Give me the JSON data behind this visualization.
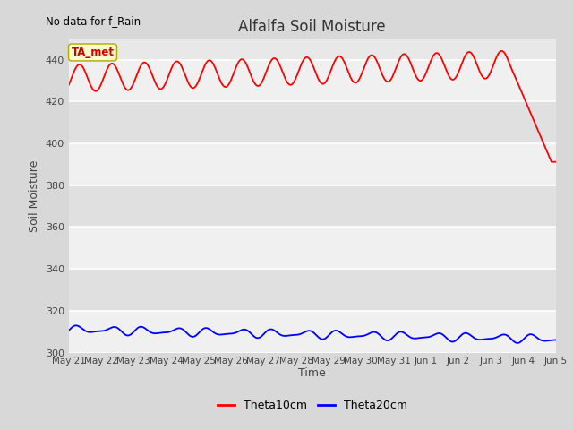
{
  "title": "Alfalfa Soil Moisture",
  "subtitle": "No data for f_Rain",
  "ylabel": "Soil Moisture",
  "xlabel": "Time",
  "ylim": [
    300,
    450
  ],
  "yticks": [
    300,
    320,
    340,
    360,
    380,
    400,
    420,
    440
  ],
  "fig_bg_color": "#d8d8d8",
  "plot_bg_color": "#e8e8e8",
  "line1_color": "#ff0000",
  "line2_color": "#0000ff",
  "legend_labels": [
    "Theta10cm",
    "Theta20cm"
  ],
  "annotation_text": "TA_met",
  "annotation_color": "#cc0000",
  "annotation_bg": "#ffffcc",
  "n_points": 1000,
  "tick_labels": [
    "May 2",
    "May 2",
    "May 2",
    "May 2",
    "May 2",
    "May 2",
    "May 2",
    "May 2",
    "May 2",
    "May 3",
    "May 31",
    "Jun 1",
    "Jun 2",
    "Jun 3",
    "Jun 4",
    "Jun 5"
  ]
}
